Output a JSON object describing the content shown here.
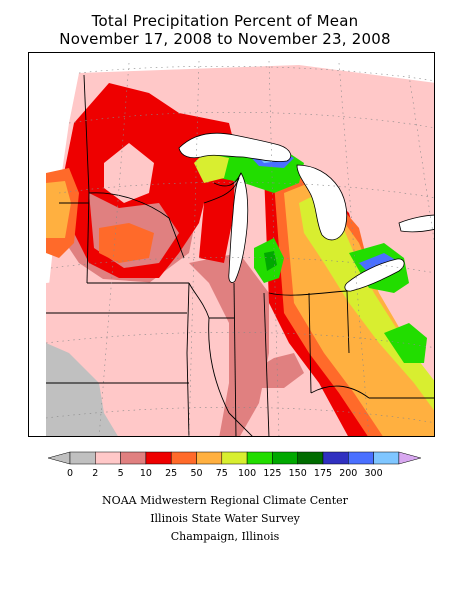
{
  "title": {
    "line1": "Total Precipitation Percent of Mean",
    "line2": "November 17, 2008 to November 23, 2008"
  },
  "legend": {
    "bins": [
      {
        "label": "0",
        "color": "#c0c0c0"
      },
      {
        "label": "2",
        "color": "#ffc8c8"
      },
      {
        "label": "5",
        "color": "#e08080"
      },
      {
        "label": "10",
        "color": "#ee0000"
      },
      {
        "label": "25",
        "color": "#ff6a2a"
      },
      {
        "label": "50",
        "color": "#ffb040"
      },
      {
        "label": "75",
        "color": "#d8ee30"
      },
      {
        "label": "100",
        "color": "#22dd00"
      },
      {
        "label": "125",
        "color": "#00a800"
      },
      {
        "label": "150",
        "color": "#006c00"
      },
      {
        "label": "175",
        "color": "#3030c0"
      },
      {
        "label": "200",
        "color": "#4a70ff"
      },
      {
        "label": "300",
        "color": "#7fc6ff"
      }
    ],
    "over_color": "#d8a8f0"
  },
  "colors": {
    "dry_grey": "#c0c0c0",
    "pink": "#ffc8c8",
    "rose": "#e08080",
    "red": "#ee0000",
    "orange": "#ff6a2a",
    "light_orange": "#ffb040",
    "yellow_green": "#d8ee30",
    "green": "#22dd00",
    "dark_green": "#00a800",
    "blue": "#4a70ff",
    "light_blue": "#7fc6ff",
    "water": "#ffffff"
  },
  "credits": {
    "line1": "NOAA Midwestern Regional Climate Center",
    "line2": "Illinois State Water Survey",
    "line3": "Champaign, Illinois"
  }
}
